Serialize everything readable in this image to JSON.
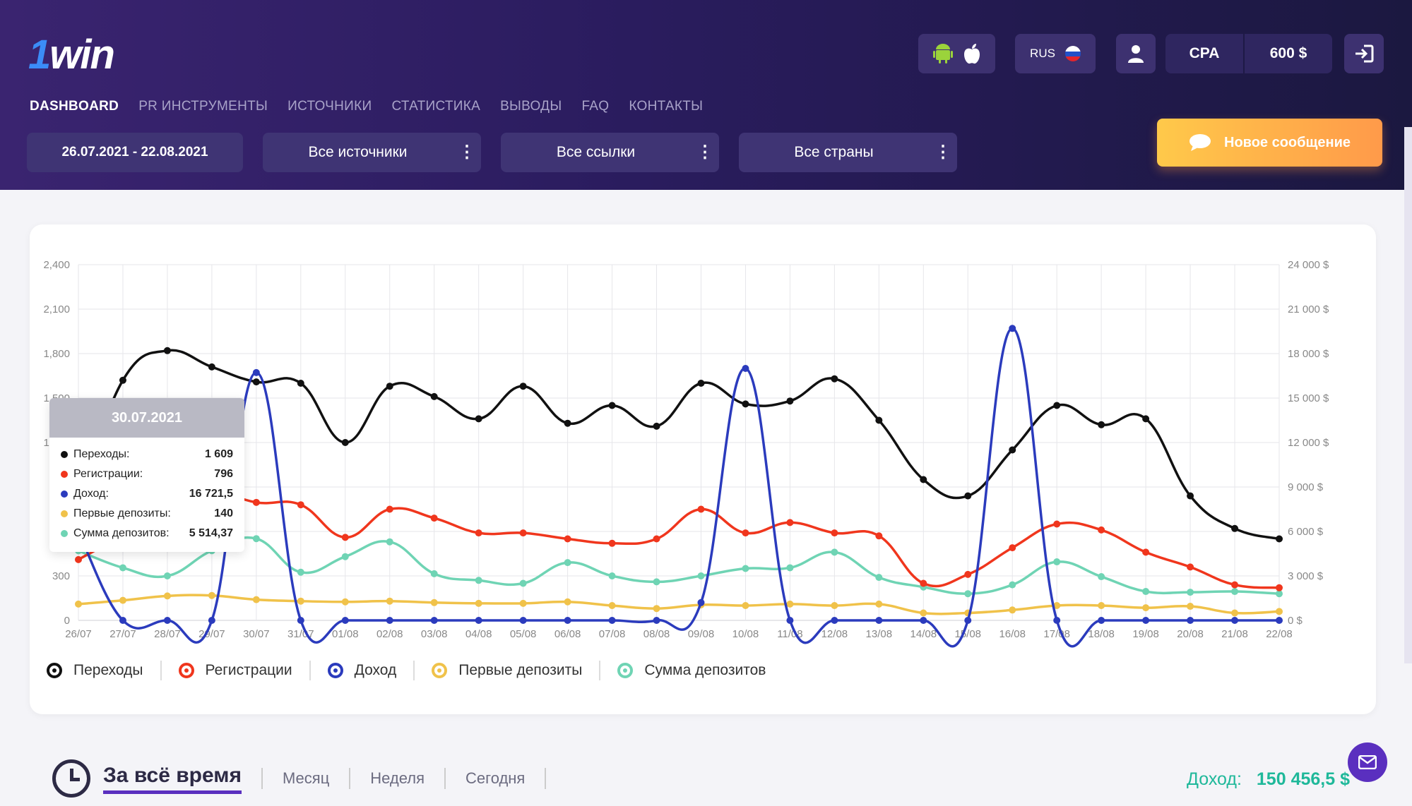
{
  "brand": {
    "logo_text": "1win",
    "logo_one": "1",
    "logo_rest": "win"
  },
  "header": {
    "platform_icons": [
      "android-icon",
      "apple-icon"
    ],
    "language": "RUS",
    "language_flag": "russia-flag-icon",
    "user_icon": "user-icon",
    "mode_label": "CPA",
    "balance": "600 $",
    "logout_icon": "logout-icon"
  },
  "nav": [
    {
      "label": "DASHBOARD",
      "active": true
    },
    {
      "label": "PR ИНСТРУМЕНТЫ",
      "active": false
    },
    {
      "label": "ИСТОЧНИКИ",
      "active": false
    },
    {
      "label": "СТАТИСТИКА",
      "active": false
    },
    {
      "label": "ВЫВОДЫ",
      "active": false
    },
    {
      "label": "FAQ",
      "active": false
    },
    {
      "label": "КОНТАКТЫ",
      "active": false
    }
  ],
  "filters": {
    "date_range": "26.07.2021 - 22.08.2021",
    "sources": "Все источники",
    "links": "Все ссылки",
    "countries": "Все страны"
  },
  "new_message_label": "Новое сообщение",
  "tooltip": {
    "date": "30.07.2021",
    "rows": [
      {
        "label": "Переходы:",
        "value": "1 609",
        "color": "#111111"
      },
      {
        "label": "Регистрации:",
        "value": "796",
        "color": "#f0361d"
      },
      {
        "label": "Доход:",
        "value": "16 721,5",
        "color": "#2b3bbd"
      },
      {
        "label": "Первые депозиты:",
        "value": "140",
        "color": "#f0c24a"
      },
      {
        "label": "Сумма депозитов:",
        "value": "5 514,37",
        "color": "#6fd4b4"
      }
    ]
  },
  "chart_data": {
    "type": "line",
    "categories": [
      "26/07",
      "27/07",
      "28/07",
      "29/07",
      "30/07",
      "31/07",
      "01/08",
      "02/08",
      "03/08",
      "04/08",
      "05/08",
      "06/08",
      "07/08",
      "08/08",
      "09/08",
      "10/08",
      "11/08",
      "12/08",
      "13/08",
      "14/08",
      "15/08",
      "16/08",
      "17/08",
      "18/08",
      "19/08",
      "20/08",
      "21/08",
      "22/08"
    ],
    "y_left": {
      "min": 0,
      "max": 2400,
      "ticks": [
        "0",
        "300",
        "600",
        "900",
        "1,200",
        "1,500",
        "1,800",
        "2,100",
        "2,400"
      ]
    },
    "y_right": {
      "min": 0,
      "max": 24000,
      "unit": "$",
      "ticks": [
        "0 $",
        "3 000 $",
        "6 000 $",
        "9 000 $",
        "12 000 $",
        "15 000 $",
        "18 000 $",
        "21 000 $",
        "24 000 $"
      ]
    },
    "grid": true,
    "series": [
      {
        "name": "Переходы",
        "axis": "left",
        "color": "#111111",
        "values": [
          810,
          1620,
          1820,
          1710,
          1609,
          1600,
          1200,
          1580,
          1510,
          1360,
          1580,
          1330,
          1450,
          1310,
          1600,
          1460,
          1480,
          1630,
          1350,
          950,
          840,
          1150,
          1450,
          1320,
          1360,
          840,
          620,
          550
        ]
      },
      {
        "name": "Регистрации",
        "axis": "left",
        "color": "#f0361d",
        "values": [
          410,
          590,
          860,
          880,
          796,
          780,
          560,
          750,
          690,
          590,
          590,
          550,
          520,
          550,
          750,
          590,
          660,
          590,
          570,
          250,
          310,
          490,
          650,
          610,
          460,
          360,
          240,
          220
        ]
      },
      {
        "name": "Доход",
        "axis": "right",
        "color": "#2b3bbd",
        "values": [
          6000,
          0,
          0,
          0,
          16721.5,
          0,
          0,
          0,
          0,
          0,
          0,
          0,
          0,
          0,
          1200,
          17000,
          0,
          0,
          0,
          0,
          0,
          19700,
          0,
          0,
          0,
          0,
          0,
          0
        ]
      },
      {
        "name": "Первые депозиты",
        "axis": "left",
        "color": "#f0c24a",
        "values": [
          110,
          135,
          165,
          168,
          140,
          130,
          125,
          130,
          120,
          115,
          115,
          125,
          100,
          80,
          105,
          100,
          110,
          100,
          110,
          50,
          50,
          70,
          100,
          100,
          85,
          95,
          50,
          60
        ]
      },
      {
        "name": "Сумма депозитов",
        "axis": "right",
        "color": "#6fd4b4",
        "values": [
          4700,
          3550,
          3000,
          4700,
          5514.37,
          3250,
          4300,
          5300,
          3150,
          2700,
          2500,
          3900,
          3000,
          2600,
          3000,
          3500,
          3550,
          4600,
          2900,
          2250,
          1800,
          2400,
          3950,
          2950,
          1950,
          1900,
          1950,
          1800
        ]
      }
    ]
  },
  "legend": [
    "Переходы",
    "Регистрации",
    "Доход",
    "Первые депозиты",
    "Сумма депозитов"
  ],
  "period": {
    "active": "За всё время",
    "options": [
      "Месяц",
      "Неделя",
      "Сегодня"
    ]
  },
  "income": {
    "label": "Доход:",
    "value": "150 456,5 $"
  }
}
